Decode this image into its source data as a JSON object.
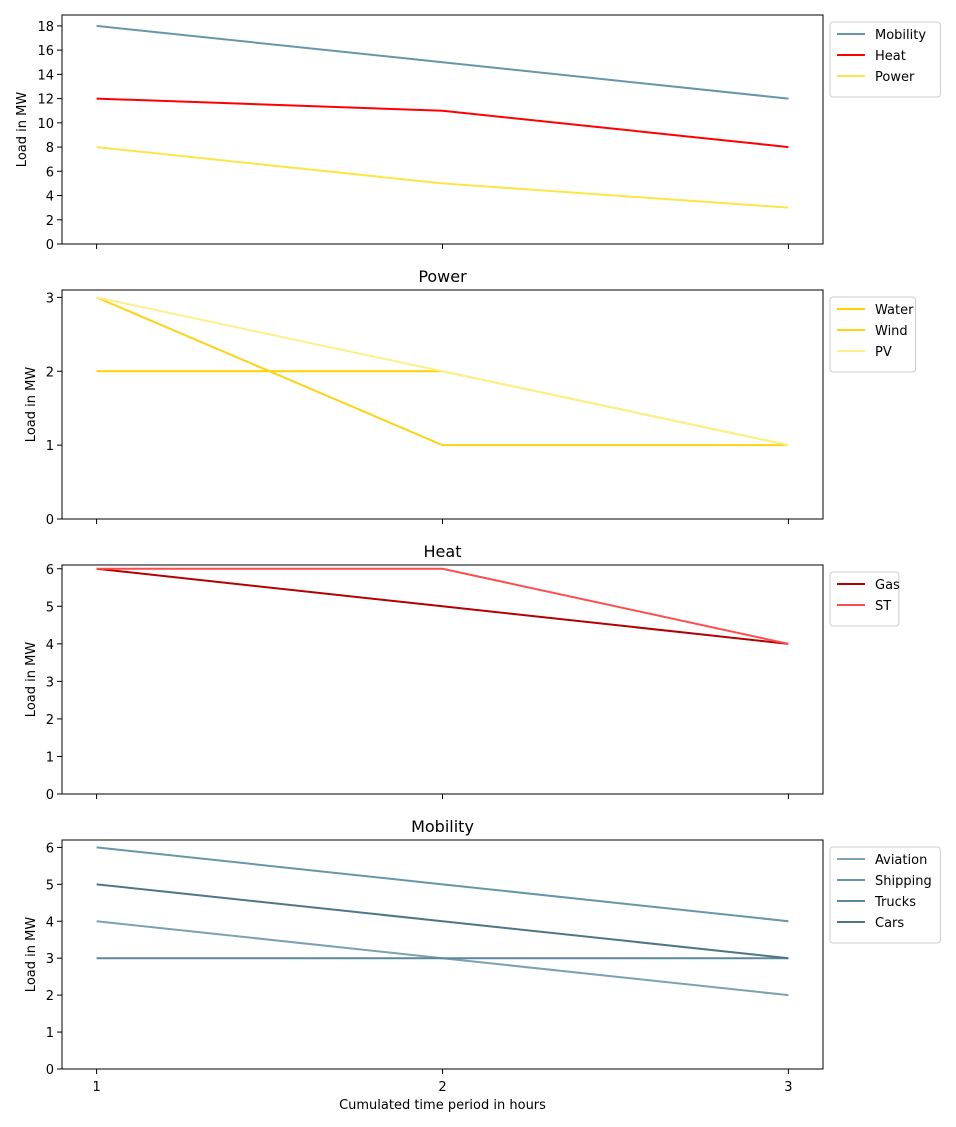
{
  "chart_data": [
    {
      "type": "line",
      "title": "",
      "xlabel": "",
      "ylabel": "Load in MW",
      "x": [
        1,
        2,
        3
      ],
      "xlim": [
        0.9,
        3.1
      ],
      "ylim": [
        0,
        18.9
      ],
      "yticks": [
        0,
        2,
        4,
        6,
        8,
        10,
        12,
        14,
        16,
        18
      ],
      "legend_position": "outside-upper-right",
      "series": [
        {
          "name": "Mobility",
          "values": [
            18,
            15,
            12
          ],
          "color": "#6796a8"
        },
        {
          "name": "Heat",
          "values": [
            12,
            11,
            8
          ],
          "color": "#ff0000"
        },
        {
          "name": "Power",
          "values": [
            8,
            5,
            3
          ],
          "color": "#fde449"
        }
      ]
    },
    {
      "type": "line",
      "title": "Power",
      "xlabel": "",
      "ylabel": "Load in MW",
      "x": [
        1,
        2,
        3
      ],
      "xlim": [
        0.9,
        3.1
      ],
      "ylim": [
        0,
        3.1
      ],
      "yticks": [
        0,
        1,
        2,
        3
      ],
      "legend_position": "outside-upper-right",
      "series": [
        {
          "name": "Water",
          "values": [
            2,
            2,
            1
          ],
          "color": "#fdd102"
        },
        {
          "name": "Wind",
          "values": [
            3,
            1,
            1
          ],
          "color": "#fdd415"
        },
        {
          "name": "PV",
          "values": [
            3,
            2,
            1
          ],
          "color": "#fdef8a"
        }
      ]
    },
    {
      "type": "line",
      "title": "Heat",
      "xlabel": "",
      "ylabel": "Load in MW",
      "x": [
        1,
        2,
        3
      ],
      "xlim": [
        0.9,
        3.1
      ],
      "ylim": [
        0,
        6.1
      ],
      "yticks": [
        0,
        1,
        2,
        3,
        4,
        5,
        6
      ],
      "legend_position": "outside-upper-right",
      "series": [
        {
          "name": "Gas",
          "values": [
            6,
            5,
            4
          ],
          "color": "#b30000"
        },
        {
          "name": "ST",
          "values": [
            6,
            6,
            4
          ],
          "color": "#ff4d4d"
        }
      ]
    },
    {
      "type": "line",
      "title": "Mobility",
      "xlabel": "Cumulated time period in hours",
      "ylabel": "Load in MW",
      "x": [
        1,
        2,
        3
      ],
      "xticks": [
        "1",
        "2",
        "3"
      ],
      "xlim": [
        0.9,
        3.1
      ],
      "ylim": [
        0,
        6.2
      ],
      "yticks": [
        0,
        1,
        2,
        3,
        4,
        5,
        6
      ],
      "legend_position": "outside-upper-right",
      "series": [
        {
          "name": "Aviation",
          "values": [
            4,
            3,
            2
          ],
          "color": "#7aa2b1"
        },
        {
          "name": "Shipping",
          "values": [
            6,
            5,
            4
          ],
          "color": "#6796a8"
        },
        {
          "name": "Trucks",
          "values": [
            3,
            3,
            3
          ],
          "color": "#5b8899"
        },
        {
          "name": "Cars",
          "values": [
            5,
            4,
            3
          ],
          "color": "#4d7687"
        }
      ]
    }
  ]
}
